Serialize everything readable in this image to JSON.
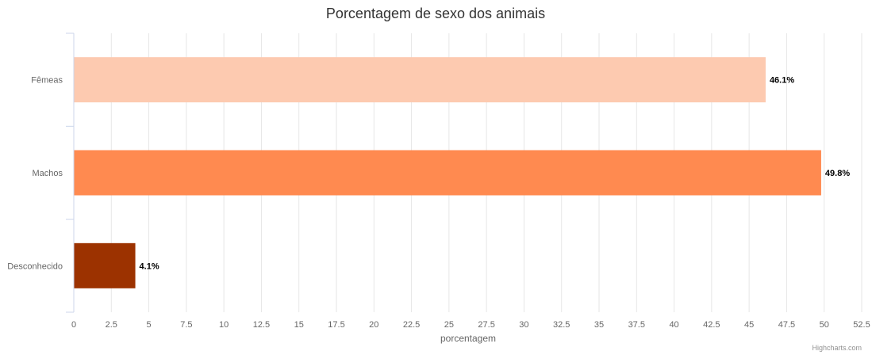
{
  "chart_data": {
    "type": "bar",
    "orientation": "horizontal",
    "title": "Porcentagem de sexo dos animais",
    "xlabel": "",
    "ylabel": "porcentagem",
    "categories": [
      "Fêmeas",
      "Machos",
      "Desconhecido"
    ],
    "values": [
      46.1,
      49.8,
      4.1
    ],
    "data_labels": [
      "46.1%",
      "49.8%",
      "4.1%"
    ],
    "colors": [
      "#fdcab0",
      "#ff8a50",
      "#9c3200"
    ],
    "value_axis": {
      "min": 0,
      "max": 52.5,
      "tick_step": 2.5,
      "tick_labels": [
        "0",
        "2.5",
        "5",
        "7.5",
        "10",
        "12.5",
        "15",
        "17.5",
        "20",
        "22.5",
        "25",
        "27.5",
        "30",
        "32.5",
        "35",
        "37.5",
        "40",
        "42.5",
        "45",
        "47.5",
        "50",
        "52.5"
      ]
    },
    "grid": true,
    "legend": "none"
  },
  "credits": "Highcharts.com"
}
